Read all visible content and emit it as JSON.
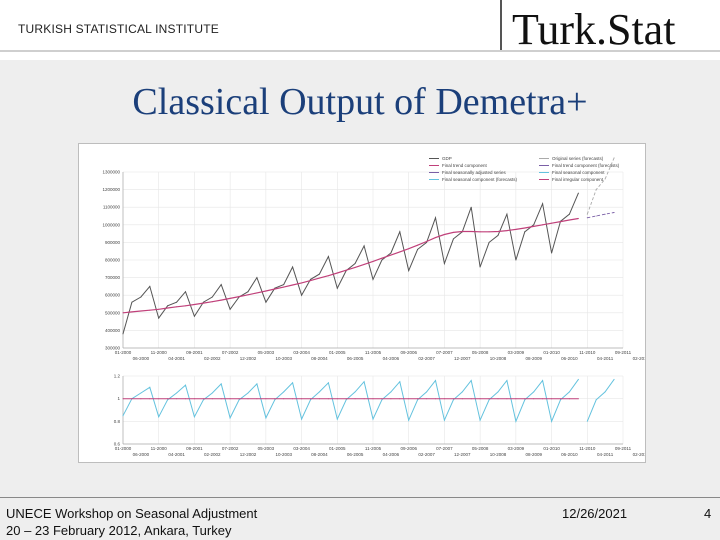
{
  "header": {
    "org": "TURKISH STATISTICAL INSTITUTE",
    "brand": "Turk.Stat"
  },
  "title": "Classical Output of Demetra+",
  "footer": {
    "workshop": "UNECE Workshop on Seasonal Adjustment",
    "dates_place": "20 – 23 February 2012, Ankara, Turkey",
    "date": "12/26/2021",
    "page": "4"
  },
  "colors": {
    "title": "#1b3f7a",
    "series": "#555555",
    "trend": "#c0407a",
    "sa": "#7a5fa6",
    "seasonal": "#63c2de",
    "forecast_series": "#aaaaaa"
  },
  "chart_data": [
    {
      "type": "line",
      "legend": [
        "GDP",
        "Final trend component",
        "Final seasonally adjusted series",
        "Final seasonal component (forecasts)",
        "Original series (forecasts)",
        "Final trend component (forecasts)",
        "Final seasonal component",
        "Final irregular component"
      ],
      "yticks": [
        "1300000",
        "1200000",
        "1100000",
        "1000000",
        "900000",
        "800000",
        "700000",
        "600000",
        "500000",
        "400000",
        "300000"
      ],
      "xticks": [
        "01-2000",
        "11-2000",
        "09-2001",
        "07-2002",
        "05-2003",
        "03-2004",
        "01-2005",
        "11-2005",
        "09-2006",
        "07-2007",
        "05-2008",
        "03-2009",
        "01-2010",
        "11-2010",
        "09-2011"
      ],
      "xticks_lower": [
        "06-2000",
        "04-2001",
        "02-2002",
        "12-2002",
        "10-2003",
        "08-2004",
        "06-2005",
        "04-2006",
        "02-2007",
        "12-2007",
        "10-2008",
        "08-2009",
        "06-2010",
        "04-2011",
        "02-2012"
      ],
      "ylim": [
        300000,
        1300000
      ],
      "series": [
        {
          "name": "GDP",
          "values": [
            380000,
            560000,
            590000,
            650000,
            470000,
            540000,
            560000,
            620000,
            480000,
            560000,
            590000,
            660000,
            520000,
            590000,
            620000,
            700000,
            560000,
            640000,
            660000,
            760000,
            600000,
            690000,
            720000,
            820000,
            640000,
            740000,
            780000,
            880000,
            690000,
            800000,
            840000,
            960000,
            740000,
            860000,
            900000,
            1040000,
            780000,
            920000,
            960000,
            1100000,
            760000,
            900000,
            940000,
            1060000,
            800000,
            960000,
            1000000,
            1120000,
            840000,
            1020000,
            1060000,
            1180000
          ]
        },
        {
          "name": "Final trend component",
          "values": [
            500000,
            505000,
            510000,
            515000,
            520000,
            527000,
            534000,
            540000,
            547000,
            555000,
            563000,
            572000,
            582000,
            592000,
            602000,
            613000,
            624000,
            635000,
            646000,
            658000,
            670000,
            683000,
            697000,
            711000,
            726000,
            742000,
            758000,
            775000,
            792000,
            810000,
            828000,
            846000,
            864000,
            884000,
            905000,
            927000,
            945000,
            957000,
            962000,
            962000,
            960000,
            960000,
            962000,
            967000,
            974000,
            982000,
            991000,
            1000000,
            1009000,
            1018000,
            1027000,
            1036000
          ]
        },
        {
          "name": "Original series (forecasts)",
          "values": [
            1060000,
            1200000,
            1260000,
            1380000
          ]
        },
        {
          "name": "Final trend component (forecasts)",
          "values": [
            1040000,
            1050000,
            1060000,
            1070000
          ]
        }
      ]
    },
    {
      "type": "line",
      "yticks": [
        "1.2",
        "1",
        "0.8",
        "0.6"
      ],
      "ylim": [
        0.6,
        1.2
      ],
      "xticks": [
        "01-2000",
        "11-2000",
        "09-2001",
        "07-2002",
        "05-2003",
        "03-2004",
        "01-2005",
        "11-2005",
        "09-2006",
        "07-2007",
        "05-2008",
        "03-2009",
        "01-2010",
        "11-2010",
        "09-2011"
      ],
      "xticks_lower": [
        "06-2000",
        "04-2001",
        "02-2002",
        "12-2002",
        "10-2003",
        "08-2004",
        "06-2005",
        "04-2006",
        "02-2007",
        "12-2007",
        "10-2008",
        "08-2009",
        "06-2010",
        "04-2011",
        "02-2012"
      ],
      "series": [
        {
          "name": "Final seasonal component",
          "values": [
            0.85,
            1.0,
            1.05,
            1.1,
            0.84,
            0.99,
            1.05,
            1.12,
            0.84,
            0.99,
            1.05,
            1.13,
            0.83,
            0.99,
            1.05,
            1.13,
            0.83,
            0.99,
            1.06,
            1.14,
            0.82,
            0.99,
            1.06,
            1.14,
            0.82,
            0.99,
            1.06,
            1.15,
            0.82,
            0.99,
            1.06,
            1.15,
            0.81,
            0.99,
            1.06,
            1.16,
            0.81,
            0.99,
            1.06,
            1.16,
            0.81,
            0.99,
            1.06,
            1.16,
            0.8,
            0.99,
            1.06,
            1.16,
            0.8,
            0.99,
            1.06,
            1.17
          ]
        },
        {
          "name": "Final irregular component",
          "values": [
            1,
            1,
            1,
            1,
            1,
            1,
            1,
            1,
            1,
            1,
            1,
            1,
            1,
            1,
            1,
            1,
            1,
            1,
            1,
            1,
            1,
            1,
            1,
            1,
            1,
            1,
            1,
            1,
            1,
            1,
            1,
            1,
            1,
            1,
            1,
            1,
            1,
            1,
            1,
            1,
            1,
            1,
            1,
            1,
            1,
            1,
            1,
            1,
            1,
            1,
            1,
            1
          ]
        },
        {
          "name": "Final seasonal component (forecasts)",
          "values": [
            0.8,
            0.99,
            1.06,
            1.17
          ]
        }
      ]
    }
  ]
}
